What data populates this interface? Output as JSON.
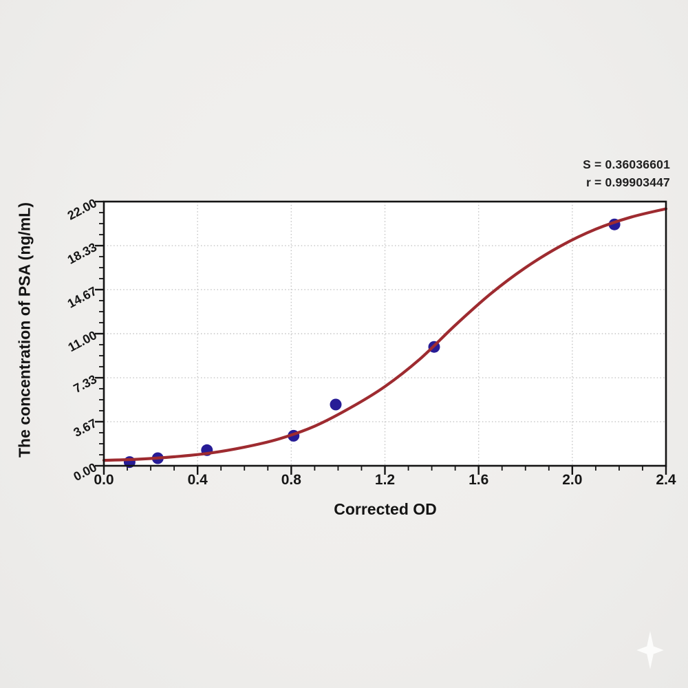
{
  "chart_data": {
    "type": "scatter",
    "title": "",
    "xlabel": "Corrected OD",
    "ylabel": "The concentration of PSA (ng/mL)",
    "xlim": [
      0,
      2.4
    ],
    "ylim": [
      0,
      22
    ],
    "x_ticks": [
      "0.0",
      "0.4",
      "0.8",
      "1.2",
      "1.6",
      "2.0",
      "2.4"
    ],
    "x_tick_values": [
      0,
      0.4,
      0.8,
      1.2,
      1.6,
      2.0,
      2.4
    ],
    "y_ticks": [
      "0.00",
      "3.67",
      "7.33",
      "11.00",
      "14.67",
      "18.33",
      "22.00"
    ],
    "y_tick_values": [
      0,
      3.67,
      7.33,
      11.0,
      14.67,
      18.33,
      22
    ],
    "x_minor_ticks_per_interval": 3,
    "y_minor_ticks_per_interval": 3,
    "grid": "dotted-major",
    "legend_position": "none",
    "series": [
      {
        "name": "standard-points",
        "type": "scatter",
        "x": [
          0.11,
          0.23,
          0.44,
          0.81,
          0.99,
          1.41,
          2.18
        ],
        "y": [
          0.31,
          0.63,
          1.3,
          2.5,
          5.1,
          9.9,
          20.1
        ]
      },
      {
        "name": "fitted-curve",
        "type": "line",
        "x": [
          0,
          0.15,
          0.3,
          0.45,
          0.6,
          0.75,
          0.9,
          1.05,
          1.2,
          1.35,
          1.5,
          1.65,
          1.8,
          1.95,
          2.1,
          2.25,
          2.4
        ],
        "y": [
          0.45,
          0.55,
          0.75,
          1.05,
          1.55,
          2.25,
          3.3,
          4.8,
          6.6,
          8.9,
          11.7,
          14.3,
          16.5,
          18.3,
          19.7,
          20.7,
          21.4
        ]
      }
    ],
    "annotations": [
      "S = 0.36036601",
      "r = 0.99903447"
    ]
  },
  "colors": {
    "curve": "#9e2b30",
    "point": "#271c96",
    "axis": "#141414",
    "grid": "#c4c4c4",
    "plot_bg": "#ffffff",
    "page_bg": "#efeeec"
  }
}
